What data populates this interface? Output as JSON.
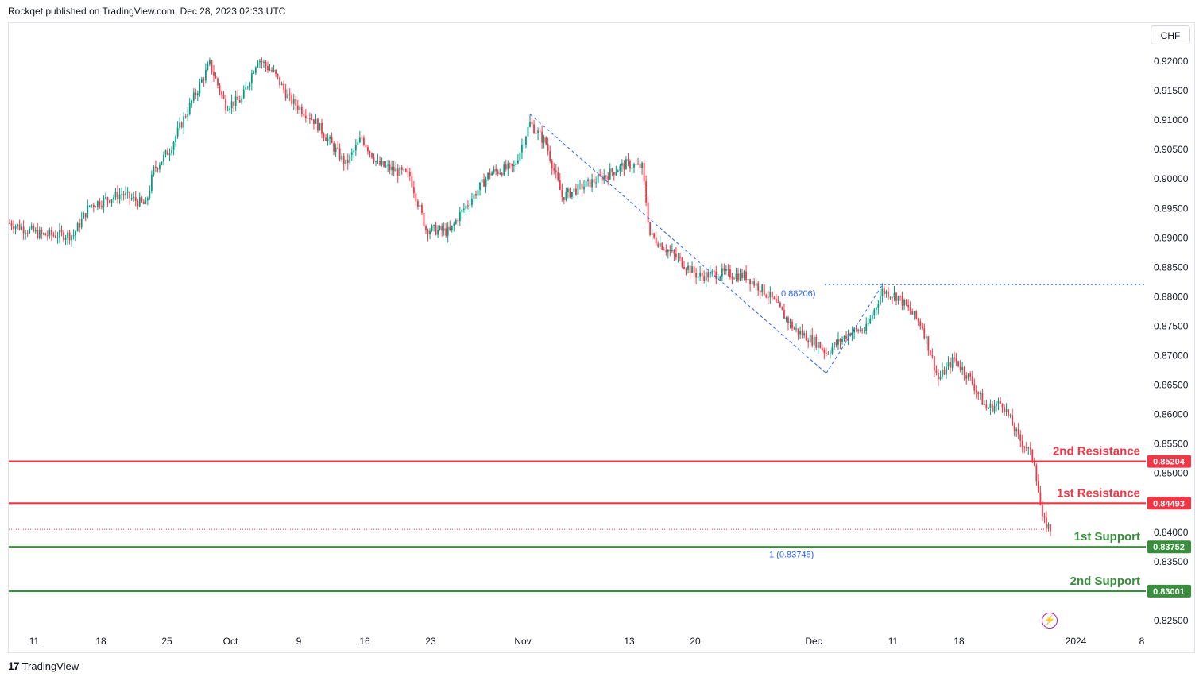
{
  "header": {
    "caption": "Rockqet published on TradingView.com, Dec 28, 2023 02:33 UTC"
  },
  "toolbar": {
    "currency": "CHF"
  },
  "footer": {
    "brand": "TradingView",
    "logo_glyph": "17"
  },
  "chart_data": {
    "type": "candlestick",
    "symbol_currency": "CHF",
    "price_axis": {
      "ticks": [
        "0.92000",
        "0.91500",
        "0.91000",
        "0.90500",
        "0.90000",
        "0.89500",
        "0.89000",
        "0.88500",
        "0.88000",
        "0.87500",
        "0.87000",
        "0.86500",
        "0.86000",
        "0.85500",
        "0.85000",
        "0.84500",
        "0.84000",
        "0.83500",
        "0.83000",
        "0.82500"
      ],
      "range": [
        0.823,
        0.9235
      ]
    },
    "time_axis": {
      "labels": [
        "11",
        "18",
        "25",
        "Oct",
        "9",
        "16",
        "23",
        "Nov",
        "13",
        "20",
        "Dec",
        "11",
        "18",
        "2024",
        "8"
      ]
    },
    "price_path": [
      {
        "t": 0,
        "p": 0.8925
      },
      {
        "t": 4,
        "p": 0.8905
      },
      {
        "t": 8,
        "p": 0.8905
      },
      {
        "t": 10,
        "p": 0.8955
      },
      {
        "t": 14,
        "p": 0.8975
      },
      {
        "t": 17,
        "p": 0.8955
      },
      {
        "t": 18,
        "p": 0.9015
      },
      {
        "t": 20,
        "p": 0.905
      },
      {
        "t": 22,
        "p": 0.911
      },
      {
        "t": 25,
        "p": 0.9195
      },
      {
        "t": 27,
        "p": 0.9125
      },
      {
        "t": 29,
        "p": 0.9135
      },
      {
        "t": 31,
        "p": 0.9205
      },
      {
        "t": 33,
        "p": 0.918
      },
      {
        "t": 35,
        "p": 0.9135
      },
      {
        "t": 38,
        "p": 0.91
      },
      {
        "t": 42,
        "p": 0.9025
      },
      {
        "t": 44,
        "p": 0.907
      },
      {
        "t": 46,
        "p": 0.9025
      },
      {
        "t": 50,
        "p": 0.9005
      },
      {
        "t": 52,
        "p": 0.8915
      },
      {
        "t": 55,
        "p": 0.891
      },
      {
        "t": 56,
        "p": 0.8935
      },
      {
        "t": 60,
        "p": 0.901
      },
      {
        "t": 63,
        "p": 0.902
      },
      {
        "t": 65,
        "p": 0.9095
      },
      {
        "t": 67,
        "p": 0.906
      },
      {
        "t": 69,
        "p": 0.897
      },
      {
        "t": 72,
        "p": 0.899
      },
      {
        "t": 75,
        "p": 0.901
      },
      {
        "t": 77,
        "p": 0.9025
      },
      {
        "t": 79,
        "p": 0.902
      },
      {
        "t": 80,
        "p": 0.8905
      },
      {
        "t": 83,
        "p": 0.887
      },
      {
        "t": 86,
        "p": 0.8835
      },
      {
        "t": 89,
        "p": 0.884
      },
      {
        "t": 92,
        "p": 0.8835
      },
      {
        "t": 95,
        "p": 0.88
      },
      {
        "t": 98,
        "p": 0.8745
      },
      {
        "t": 101,
        "p": 0.872
      },
      {
        "t": 102,
        "p": 0.8705
      },
      {
        "t": 105,
        "p": 0.874
      },
      {
        "t": 107,
        "p": 0.8745
      },
      {
        "t": 109,
        "p": 0.881
      },
      {
        "t": 111,
        "p": 0.88
      },
      {
        "t": 114,
        "p": 0.875
      },
      {
        "t": 116,
        "p": 0.866
      },
      {
        "t": 118,
        "p": 0.8695
      },
      {
        "t": 120,
        "p": 0.866
      },
      {
        "t": 122,
        "p": 0.861
      },
      {
        "t": 124,
        "p": 0.862
      },
      {
        "t": 126,
        "p": 0.856
      },
      {
        "t": 127,
        "p": 0.8545
      },
      {
        "t": 128,
        "p": 0.852
      },
      {
        "t": 129,
        "p": 0.842
      },
      {
        "t": 130,
        "p": 0.8405
      }
    ],
    "current_price": 0.8405,
    "levels": [
      {
        "name": "2nd Resistance",
        "value": 0.85204,
        "label": "0.85204",
        "color": "#f23645"
      },
      {
        "name": "1st Resistance",
        "value": 0.84493,
        "label": "0.84493",
        "color": "#f23645"
      },
      {
        "name": "1st Support",
        "value": 0.83752,
        "label": "0.83752",
        "color": "#388e3c"
      },
      {
        "name": "2nd Support",
        "value": 0.83001,
        "label": "0.83001",
        "color": "#388e3c"
      }
    ],
    "fib_labels": [
      {
        "text": "0.88206)",
        "value": 0.88206
      },
      {
        "text": "1 (0.83745)",
        "value": 0.83745
      }
    ],
    "fib_high_line": 0.88206,
    "drawing_points": {
      "decline": [
        {
          "t": 65,
          "p": 0.911
        },
        {
          "t": 102,
          "p": 0.867
        }
      ],
      "rebound": [
        {
          "t": 102,
          "p": 0.867
        },
        {
          "t": 109,
          "p": 0.882
        }
      ]
    },
    "colors": {
      "up": "#089981",
      "down": "#f23645",
      "fib": "#2962ff",
      "resistance": "#f23645",
      "support": "#388e3c"
    }
  }
}
